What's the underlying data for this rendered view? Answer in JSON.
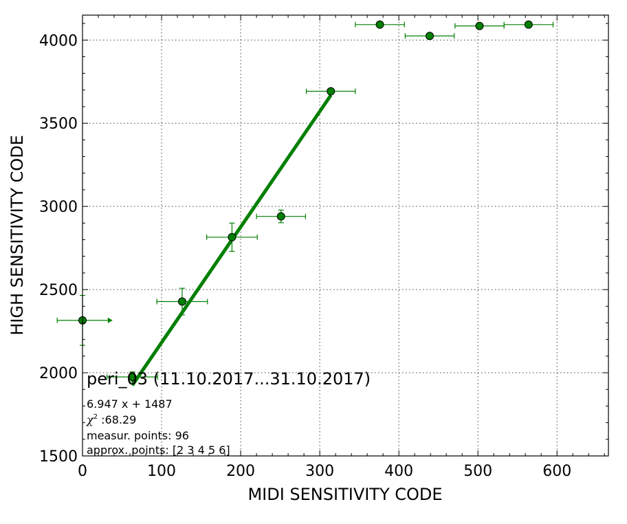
{
  "chart_data": {
    "type": "scatter",
    "xlabel": "MIDI SENSITIVITY CODE",
    "ylabel": "HIGH SENSITIVITY CODE",
    "xlim": [
      0,
      665
    ],
    "ylim": [
      1500,
      4150
    ],
    "xticks": [
      0,
      100,
      200,
      300,
      400,
      500,
      600
    ],
    "yticks": [
      1500,
      2000,
      2500,
      3000,
      3500,
      4000
    ],
    "grid": true,
    "color": "#007f00",
    "points": [
      {
        "x": 0,
        "y": 2315,
        "xerr": 32,
        "yerr": 150,
        "right_arrow": true
      },
      {
        "x": 63,
        "y": 1975,
        "xerr": 32,
        "yerr": 30
      },
      {
        "x": 126,
        "y": 2428,
        "xerr": 32,
        "yerr": 80
      },
      {
        "x": 189,
        "y": 2815,
        "xerr": 32,
        "yerr": 85
      },
      {
        "x": 251,
        "y": 2940,
        "xerr": 31,
        "yerr": 38
      },
      {
        "x": 314,
        "y": 3692,
        "xerr": 31,
        "yerr": 0
      },
      {
        "x": 376,
        "y": 4093,
        "xerr": 31,
        "yerr": 0
      },
      {
        "x": 439,
        "y": 4025,
        "xerr": 31,
        "yerr": 0
      },
      {
        "x": 502,
        "y": 4085,
        "xerr": 31,
        "yerr": 0
      },
      {
        "x": 564,
        "y": 4093,
        "xerr": 31,
        "yerr": 0
      }
    ],
    "fit": {
      "slope": 6.947,
      "intercept": 1487,
      "x_range": [
        63,
        314
      ]
    },
    "annotations": {
      "title": "peri_03 (11.10.2017...31.10.2017)",
      "equation": "6.947 x + 1487",
      "chi2": " :68.29",
      "measur_points": "measur. points: 96",
      "approx_points": "approx. points: [2 3 4 5 6]"
    }
  }
}
